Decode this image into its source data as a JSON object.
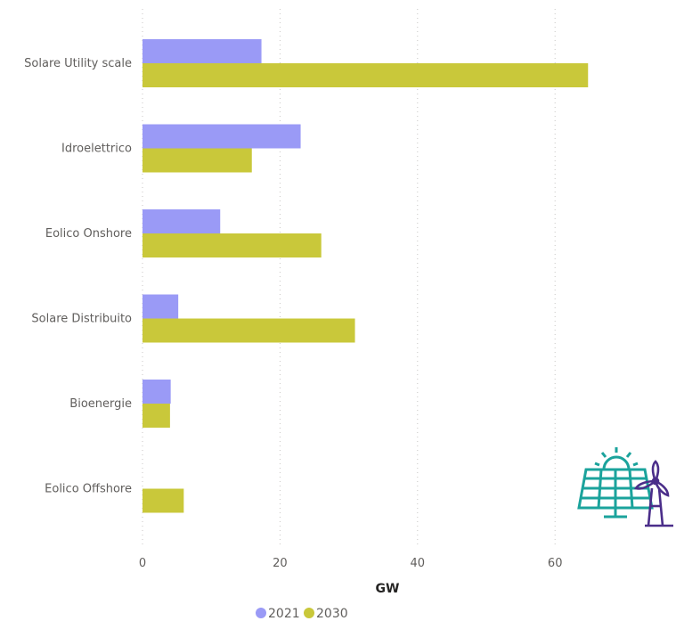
{
  "chart_data": {
    "type": "bar",
    "orientation": "horizontal",
    "categories": [
      "Solare Utility scale",
      "Idroelettrico",
      "Eolico Onshore",
      "Solare Distribuito",
      "Bioenergie",
      "Eolico Offshore"
    ],
    "series": [
      {
        "name": "2021",
        "values": [
          17.3,
          23.0,
          11.3,
          5.2,
          4.1,
          0
        ],
        "color": "#9a9af6"
      },
      {
        "name": "2030",
        "values": [
          64.8,
          15.9,
          26.0,
          30.9,
          4.0,
          6.0
        ],
        "color": "#c9c83a"
      }
    ],
    "xlabel": "GW",
    "ylabel": "",
    "xlim": [
      0,
      78
    ],
    "xticks": [
      0,
      20,
      40,
      60
    ],
    "grid": true,
    "legend_position": "bottom"
  },
  "decoration": {
    "icon": "solar-panel-wind-turbine-icon",
    "icon_colors": [
      "#1ba39c",
      "#4b2e8a"
    ]
  }
}
